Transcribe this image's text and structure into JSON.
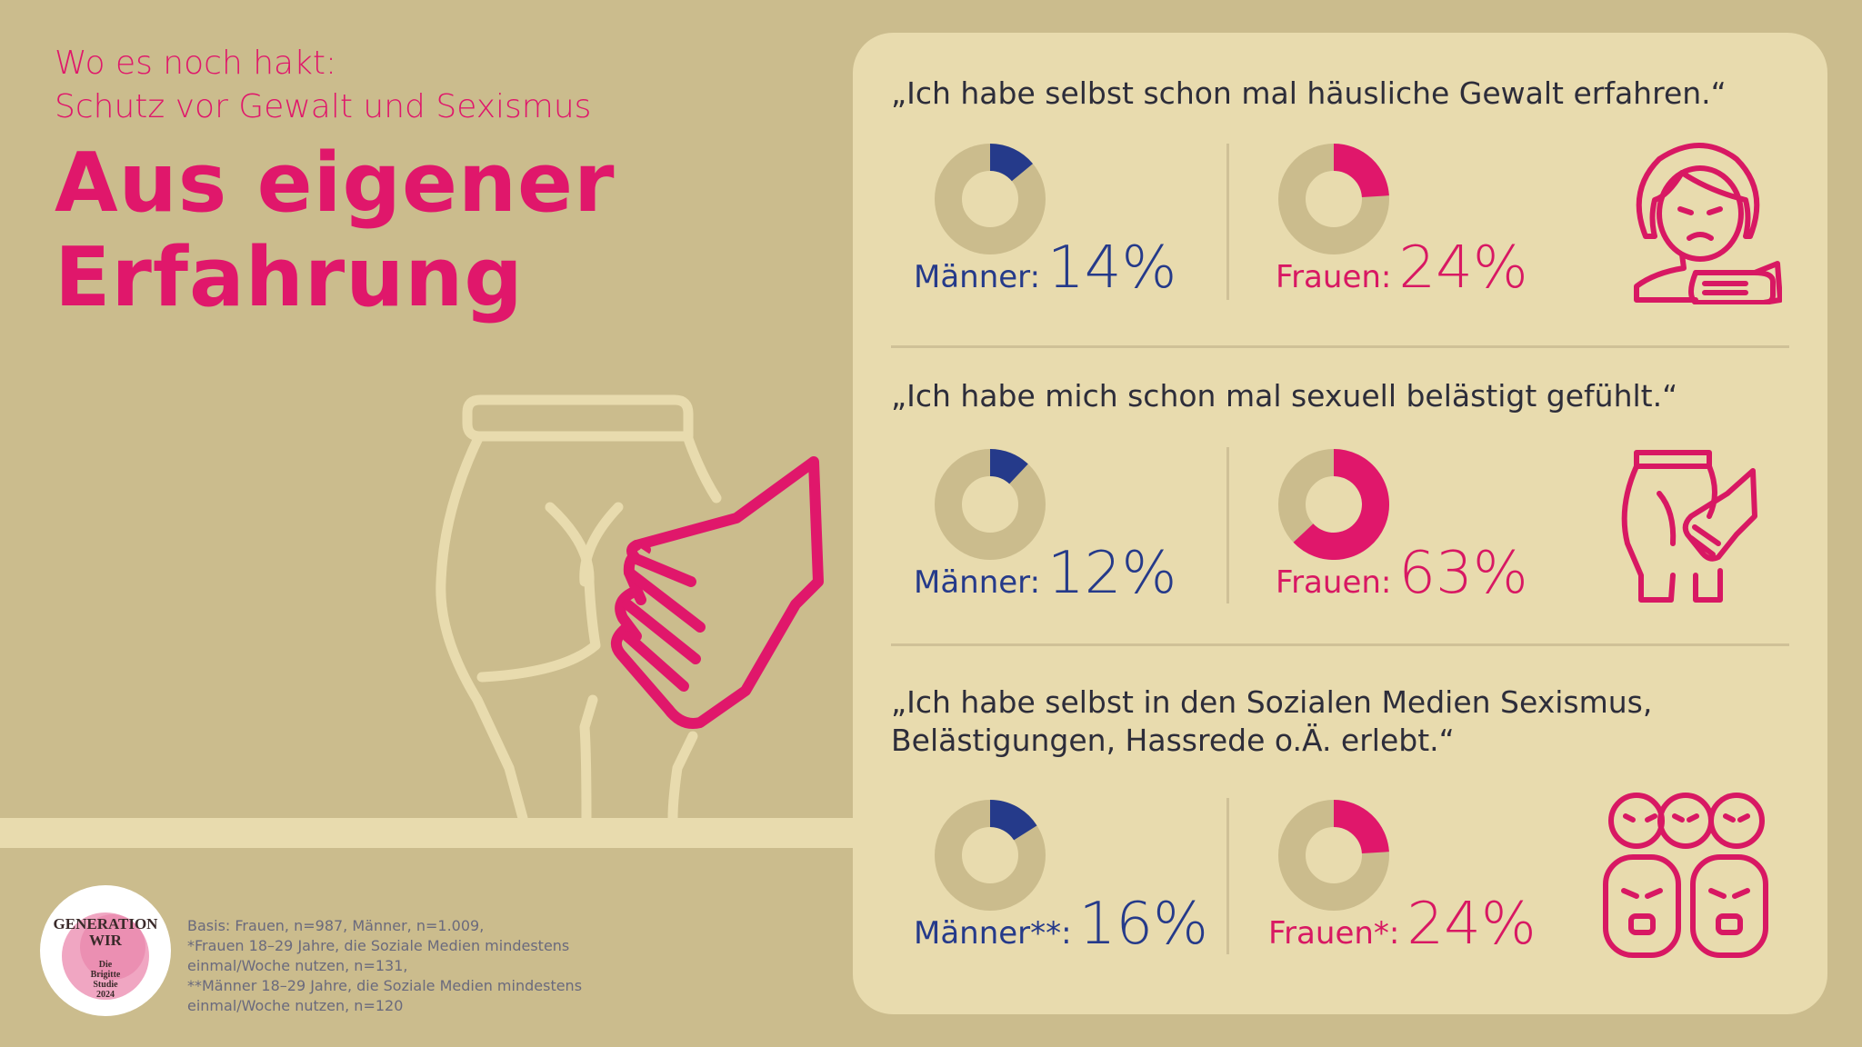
{
  "header": {
    "kicker_line1": "Wo es noch hakt:",
    "kicker_line2": "Schutz vor Gewalt und Sexismus",
    "title_line1": "Aus eigener",
    "title_line2": "Erfahrung"
  },
  "colors": {
    "background": "#cbbc8d",
    "panel": "#e8dbae",
    "accent_pink": "#e0176b",
    "men_blue": "#253a8a",
    "donut_track": "#cbbc8d"
  },
  "chart_data": [
    {
      "type": "pie",
      "title": "„Ich habe selbst schon mal häusliche Gewalt erfahren.“",
      "series": [
        {
          "name": "Männer:",
          "values": [
            14
          ],
          "display": "14%"
        },
        {
          "name": "Frauen:",
          "values": [
            24
          ],
          "display": "24%"
        }
      ],
      "icon": "woman-crying-icon"
    },
    {
      "type": "pie",
      "title": "„Ich habe mich schon mal sexuell belästigt gefühlt.“",
      "series": [
        {
          "name": "Männer:",
          "values": [
            12
          ],
          "display": "12%"
        },
        {
          "name": "Frauen:",
          "values": [
            63
          ],
          "display": "63%"
        }
      ],
      "icon": "hand-grope-icon"
    },
    {
      "type": "pie",
      "title_line1": "„Ich habe selbst in den Sozialen Medien Sexismus,",
      "title_line2": "Belästigungen, Hassrede o.Ä. erlebt.“",
      "series": [
        {
          "name": "Männer**:",
          "values": [
            16
          ],
          "display": "16%"
        },
        {
          "name": "Frauen*:",
          "values": [
            24
          ],
          "display": "24%"
        }
      ],
      "icon": "angry-crowd-icon"
    }
  ],
  "footnote": {
    "line1": "Basis: Frauen, n=987, Männer, n=1.009,",
    "line2": "*Frauen 18–29 Jahre, die Soziale Medien mindestens",
    "line3": "einmal/Woche nutzen, n=131,",
    "line4": "**Männer 18–29 Jahre, die Soziale Medien mindestens",
    "line5": "einmal/Woche nutzen, n=120"
  },
  "logo": {
    "line1": "GENERATION",
    "line2": "WIR",
    "line3": "Die",
    "line4": "Brigitte",
    "line5": "Studie",
    "line6": "2024"
  }
}
